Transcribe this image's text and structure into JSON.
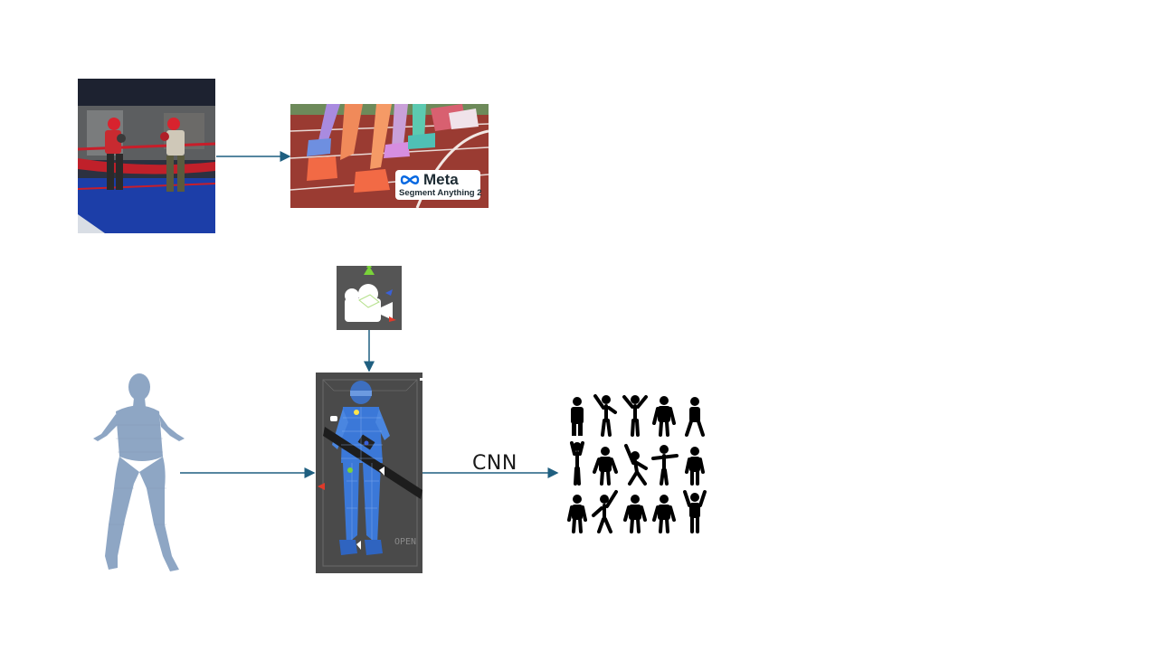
{
  "labels": {
    "cnn": "CNN",
    "meta_brand": "Meta",
    "sam_title": "Segment Anything 2",
    "open_text": "OPEN"
  },
  "colors": {
    "arrow": "#1f5f80",
    "mannequin": "#8ea6c4",
    "wireframe": "#4a90e8",
    "track": "#9a3b32",
    "pictogram": "#000000"
  },
  "icons": {
    "camera": "unity-camera-gizmo-icon",
    "meta": "meta-infinity-logo-icon"
  }
}
